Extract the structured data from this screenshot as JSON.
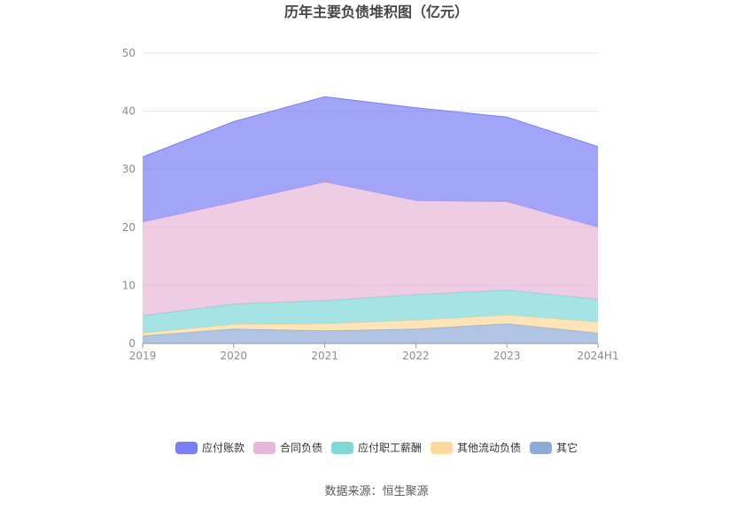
{
  "chart_data": {
    "type": "area",
    "stacked": true,
    "title": "历年主要负债堆积图（亿元）",
    "x": [
      "2019",
      "2020",
      "2021",
      "2022",
      "2023",
      "2024H1"
    ],
    "ylim": [
      0,
      50
    ],
    "yticks": [
      0,
      10,
      20,
      30,
      40,
      50
    ],
    "grid": true,
    "legend_position": "bottom",
    "series": [
      {
        "name": "其它",
        "color": "#8eabd8",
        "values": [
          1.3,
          2.5,
          2.2,
          2.5,
          3.4,
          1.8
        ]
      },
      {
        "name": "其他流动负债",
        "color": "#fdd99b",
        "values": [
          0.5,
          0.8,
          1.2,
          1.5,
          1.5,
          1.9
        ]
      },
      {
        "name": "应付职工薪酬",
        "color": "#7fd7d8",
        "values": [
          3.0,
          3.5,
          4.0,
          4.4,
          4.3,
          3.9
        ]
      },
      {
        "name": "合同负债",
        "color": "#e7b6d8",
        "values": [
          16.1,
          17.5,
          20.4,
          16.2,
          15.2,
          12.4
        ]
      },
      {
        "name": "应付账款",
        "color": "#7b7ef5",
        "values": [
          11.2,
          13.9,
          14.7,
          16.0,
          14.6,
          13.9
        ]
      }
    ],
    "legend_order": [
      "应付账款",
      "合同负债",
      "应付职工薪酬",
      "其他流动负债",
      "其它"
    ]
  },
  "source": "数据来源：恒生聚源"
}
